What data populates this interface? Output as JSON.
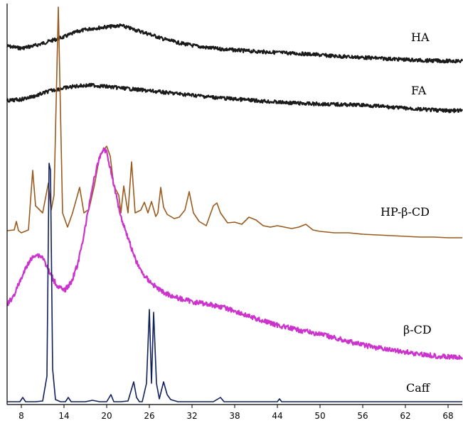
{
  "chart_data": {
    "type": "line",
    "xlim": [
      6,
      70
    ],
    "x_ticks": [
      8,
      14,
      20,
      26,
      32,
      38,
      44,
      50,
      56,
      62,
      68
    ],
    "y_ticks": [],
    "grid": false,
    "legend": "none",
    "series": [
      {
        "name": "HA",
        "color": "#1a1a1a",
        "points": [
          [
            6,
            65
          ],
          [
            8,
            68
          ],
          [
            10,
            64
          ],
          [
            12,
            58
          ],
          [
            14,
            52
          ],
          [
            16,
            44
          ],
          [
            18,
            40
          ],
          [
            20,
            38
          ],
          [
            22,
            36
          ],
          [
            24,
            42
          ],
          [
            26,
            48
          ],
          [
            28,
            55
          ],
          [
            30,
            60
          ],
          [
            32,
            64
          ],
          [
            34,
            67
          ],
          [
            36,
            69
          ],
          [
            40,
            72
          ],
          [
            44,
            74
          ],
          [
            48,
            76
          ],
          [
            52,
            79
          ],
          [
            56,
            81
          ],
          [
            60,
            83
          ],
          [
            64,
            85
          ],
          [
            68,
            86
          ],
          [
            70,
            86
          ]
        ]
      },
      {
        "name": "FA",
        "color": "#1a1a1a",
        "points": [
          [
            6,
            142
          ],
          [
            8,
            140
          ],
          [
            10,
            135
          ],
          [
            12,
            128
          ],
          [
            14,
            124
          ],
          [
            16,
            121
          ],
          [
            18,
            120
          ],
          [
            20,
            122
          ],
          [
            22,
            124
          ],
          [
            24,
            126
          ],
          [
            26,
            128
          ],
          [
            28,
            130
          ],
          [
            30,
            132
          ],
          [
            32,
            134
          ],
          [
            36,
            138
          ],
          [
            40,
            141
          ],
          [
            44,
            144
          ],
          [
            48,
            146
          ],
          [
            52,
            147
          ],
          [
            56,
            148
          ],
          [
            60,
            151
          ],
          [
            64,
            154
          ],
          [
            68,
            156
          ],
          [
            70,
            156
          ]
        ]
      },
      {
        "name": "HP-β-CD",
        "color": "#9a5a1e",
        "points": [
          [
            6,
            325
          ],
          [
            7,
            324
          ],
          [
            7.3,
            312
          ],
          [
            7.6,
            325
          ],
          [
            8,
            328
          ],
          [
            9,
            324
          ],
          [
            9.6,
            240
          ],
          [
            10,
            290
          ],
          [
            11,
            300
          ],
          [
            11.8,
            258
          ],
          [
            12.2,
            296
          ],
          [
            12.6,
            275
          ],
          [
            13.2,
            10
          ],
          [
            13.8,
            300
          ],
          [
            14.5,
            320
          ],
          [
            15.2,
            300
          ],
          [
            16.2,
            264
          ],
          [
            16.8,
            300
          ],
          [
            17.5,
            295
          ],
          [
            18.3,
            260
          ],
          [
            19,
            220
          ],
          [
            19.5,
            212
          ],
          [
            20,
            206
          ],
          [
            20.5,
            220
          ],
          [
            21,
            262
          ],
          [
            21.7,
            275
          ],
          [
            22,
            300
          ],
          [
            22.4,
            262
          ],
          [
            23,
            300
          ],
          [
            23.5,
            228
          ],
          [
            24,
            300
          ],
          [
            24.8,
            296
          ],
          [
            25.3,
            285
          ],
          [
            25.8,
            300
          ],
          [
            26.3,
            284
          ],
          [
            26.9,
            305
          ],
          [
            27.2,
            300
          ],
          [
            27.6,
            264
          ],
          [
            28,
            292
          ],
          [
            28.5,
            302
          ],
          [
            29.5,
            308
          ],
          [
            30.2,
            306
          ],
          [
            31,
            296
          ],
          [
            31.6,
            270
          ],
          [
            32.2,
            300
          ],
          [
            33,
            312
          ],
          [
            34,
            318
          ],
          [
            35,
            290
          ],
          [
            35.5,
            286
          ],
          [
            36,
            300
          ],
          [
            37,
            314
          ],
          [
            38,
            313
          ],
          [
            39,
            316
          ],
          [
            40,
            306
          ],
          [
            41,
            310
          ],
          [
            42,
            318
          ],
          [
            43,
            320
          ],
          [
            44,
            318
          ],
          [
            45,
            320
          ],
          [
            46,
            322
          ],
          [
            47,
            320
          ],
          [
            48,
            316
          ],
          [
            49,
            324
          ],
          [
            50,
            326
          ],
          [
            52,
            328
          ],
          [
            54,
            328
          ],
          [
            56,
            330
          ],
          [
            58,
            331
          ],
          [
            60,
            332
          ],
          [
            62,
            333
          ],
          [
            64,
            334
          ],
          [
            66,
            334
          ],
          [
            68,
            335
          ],
          [
            70,
            335
          ]
        ]
      },
      {
        "name": "β-CD",
        "color": "#cc33cc",
        "points": [
          [
            6,
            430
          ],
          [
            7,
            415
          ],
          [
            8,
            392
          ],
          [
            9,
            370
          ],
          [
            10,
            358
          ],
          [
            11,
            362
          ],
          [
            12,
            385
          ],
          [
            13,
            402
          ],
          [
            14,
            410
          ],
          [
            15,
            398
          ],
          [
            16,
            370
          ],
          [
            17,
            320
          ],
          [
            18,
            262
          ],
          [
            19,
            222
          ],
          [
            19.5,
            210
          ],
          [
            20,
            214
          ],
          [
            21,
            260
          ],
          [
            22,
            305
          ],
          [
            23,
            335
          ],
          [
            24,
            365
          ],
          [
            25,
            385
          ],
          [
            26,
            396
          ],
          [
            27,
            405
          ],
          [
            28,
            412
          ],
          [
            30,
            420
          ],
          [
            32,
            425
          ],
          [
            34,
            428
          ],
          [
            36,
            432
          ],
          [
            38,
            438
          ],
          [
            40,
            446
          ],
          [
            42,
            452
          ],
          [
            44,
            458
          ],
          [
            46,
            463
          ],
          [
            48,
            467
          ],
          [
            50,
            471
          ],
          [
            52,
            476
          ],
          [
            54,
            481
          ],
          [
            56,
            486
          ],
          [
            58,
            490
          ],
          [
            60,
            493
          ],
          [
            62,
            496
          ],
          [
            64,
            499
          ],
          [
            66,
            501
          ],
          [
            68,
            503
          ],
          [
            70,
            504
          ]
        ]
      },
      {
        "name": "Caff",
        "color": "#0f1f5c",
        "points": [
          [
            6,
            566
          ],
          [
            7.8,
            566
          ],
          [
            8.2,
            560
          ],
          [
            8.6,
            566
          ],
          [
            10,
            566
          ],
          [
            11,
            565
          ],
          [
            11.6,
            530
          ],
          [
            11.9,
            230
          ],
          [
            12.1,
            240
          ],
          [
            12.4,
            520
          ],
          [
            12.8,
            563
          ],
          [
            13.5,
            566
          ],
          [
            14.2,
            566
          ],
          [
            14.6,
            560
          ],
          [
            15,
            566
          ],
          [
            16,
            566
          ],
          [
            17,
            566
          ],
          [
            18,
            564
          ],
          [
            19,
            566
          ],
          [
            20,
            566
          ],
          [
            20.6,
            556
          ],
          [
            21,
            566
          ],
          [
            22,
            566
          ],
          [
            23,
            565
          ],
          [
            23.8,
            538
          ],
          [
            24.2,
            560
          ],
          [
            24.6,
            566
          ],
          [
            25,
            566
          ],
          [
            25.6,
            540
          ],
          [
            26,
            436
          ],
          [
            26.3,
            540
          ],
          [
            26.6,
            440
          ],
          [
            27,
            540
          ],
          [
            27.4,
            562
          ],
          [
            28,
            538
          ],
          [
            28.5,
            556
          ],
          [
            29,
            563
          ],
          [
            30,
            566
          ],
          [
            31,
            566
          ],
          [
            32,
            566
          ],
          [
            33,
            566
          ],
          [
            34,
            566
          ],
          [
            35,
            566
          ],
          [
            36,
            560
          ],
          [
            36.5,
            566
          ],
          [
            38,
            566
          ],
          [
            40,
            566
          ],
          [
            42,
            566
          ],
          [
            44,
            566
          ],
          [
            44.3,
            562
          ],
          [
            44.6,
            566
          ],
          [
            46,
            566
          ],
          [
            50,
            566
          ],
          [
            54,
            566
          ],
          [
            58,
            566
          ],
          [
            62,
            566
          ],
          [
            66,
            566
          ],
          [
            70,
            566
          ]
        ]
      }
    ],
    "series_labels": [
      "HA",
      "FA",
      "HP-β-CD",
      "β-CD",
      "Caff"
    ]
  }
}
